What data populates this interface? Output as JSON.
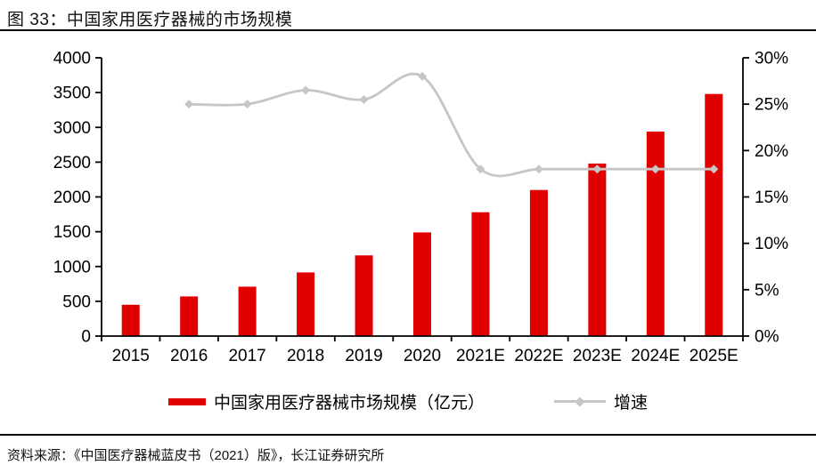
{
  "figure": {
    "title": "图 33：中国家用医疗器械的市场规模",
    "source": "资料来源：《中国医疗器械蓝皮书（2021）版》，长江证券研究所"
  },
  "chart_data": {
    "type": "bar",
    "subtype": "bar-line-combo",
    "categories": [
      "2015",
      "2016",
      "2017",
      "2018",
      "2019",
      "2020",
      "2021E",
      "2022E",
      "2023E",
      "2024E",
      "2025E"
    ],
    "series": [
      {
        "name": "中国家用医疗器械市场规模（亿元）",
        "type": "bar",
        "axis": "left",
        "color": "#e00000",
        "values": [
          450,
          570,
          710,
          915,
          1160,
          1490,
          1780,
          2100,
          2480,
          2940,
          3480
        ]
      },
      {
        "name": "增速",
        "type": "line",
        "axis": "right",
        "color": "#c6c6c6",
        "marker": "diamond",
        "smooth": true,
        "values_pct": [
          null,
          25,
          25,
          26.5,
          25.5,
          28,
          18,
          18,
          18,
          18,
          18
        ]
      }
    ],
    "left_axis": {
      "min": 0,
      "max": 4000,
      "step": 500,
      "ticks": [
        "0",
        "500",
        "1000",
        "1500",
        "2000",
        "2500",
        "3000",
        "3500",
        "4000"
      ]
    },
    "right_axis": {
      "min": 0,
      "max": 30,
      "step": 5,
      "ticks": [
        "0%",
        "5%",
        "10%",
        "15%",
        "20%",
        "25%",
        "30%"
      ]
    },
    "grid": false,
    "legend_position": "bottom",
    "axis_color": "#000000",
    "tick_label_color": "#000000"
  }
}
